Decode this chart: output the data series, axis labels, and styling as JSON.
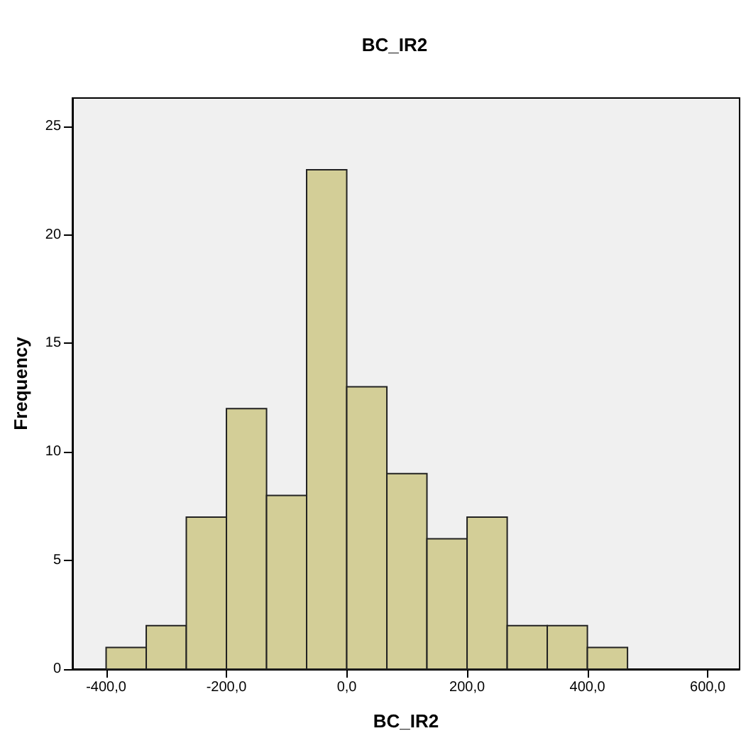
{
  "chart_data": {
    "type": "histogram",
    "title": "BC_IR2",
    "xlabel": "BC_IR2",
    "ylabel": "Frequency",
    "bins": [
      -400,
      -333.3,
      -266.7,
      -200,
      -133.3,
      -66.7,
      0,
      66.7,
      133.3,
      200,
      266.7,
      333.3,
      400,
      466.7
    ],
    "values": [
      1,
      2,
      7,
      12,
      8,
      23,
      13,
      9,
      6,
      7,
      2,
      2,
      1
    ],
    "color": "#d3ce97",
    "xlim": [
      -456,
      653
    ],
    "xticks": [
      {
        "value": -400,
        "label": "-400,0"
      },
      {
        "value": -200,
        "label": "-200,0"
      },
      {
        "value": 0,
        "label": "0,0"
      },
      {
        "value": 200,
        "label": "200,0"
      },
      {
        "value": 400,
        "label": "400,0"
      },
      {
        "value": 600,
        "label": "600,0"
      }
    ],
    "ylim": [
      0,
      26.3
    ],
    "yticks": [
      0,
      5,
      10,
      15,
      20,
      25
    ],
    "grid": false
  }
}
